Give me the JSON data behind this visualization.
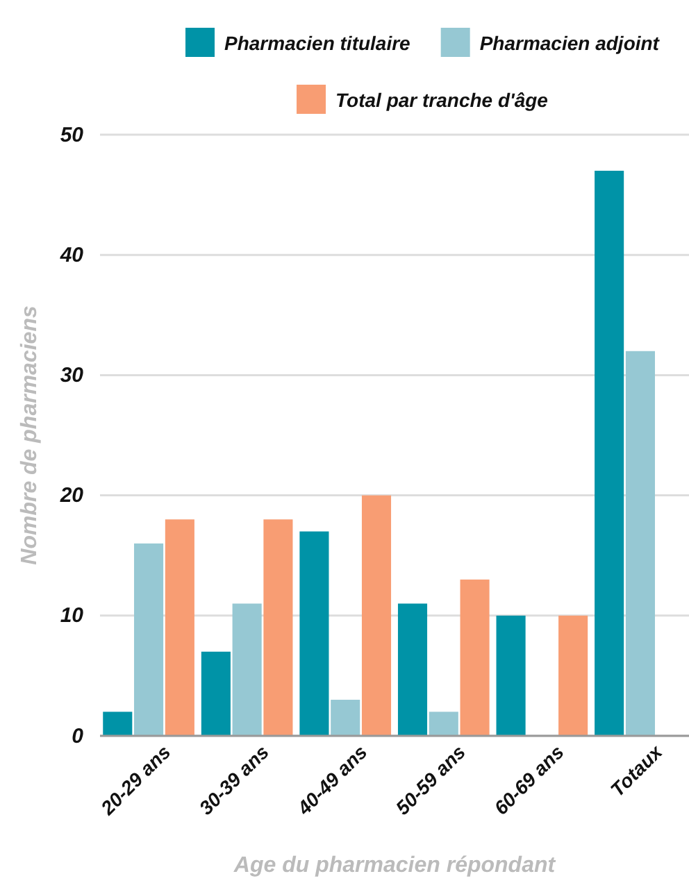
{
  "chart_data": {
    "type": "bar",
    "xlabel": "Age du pharmacien répondant",
    "ylabel": "Nombre de pharmaciens",
    "categories": [
      "20-29 ans",
      "30-39 ans",
      "40-49 ans",
      "50-59 ans",
      "60-69 ans",
      "Totaux"
    ],
    "series": [
      {
        "name": "Pharmacien titulaire",
        "color": "#0093a7",
        "values": [
          2,
          7,
          17,
          11,
          10,
          47
        ]
      },
      {
        "name": "Pharmacien adjoint",
        "color": "#96c8d3",
        "values": [
          16,
          11,
          3,
          2,
          null,
          32
        ]
      },
      {
        "name": "Total par tranche d'âge",
        "color": "#f89d73",
        "values": [
          18,
          18,
          20,
          13,
          10,
          null
        ]
      }
    ],
    "ylim": [
      0,
      50
    ],
    "yticks": [
      0,
      10,
      20,
      30,
      40,
      50
    ],
    "grid": "y",
    "legend": "top"
  }
}
